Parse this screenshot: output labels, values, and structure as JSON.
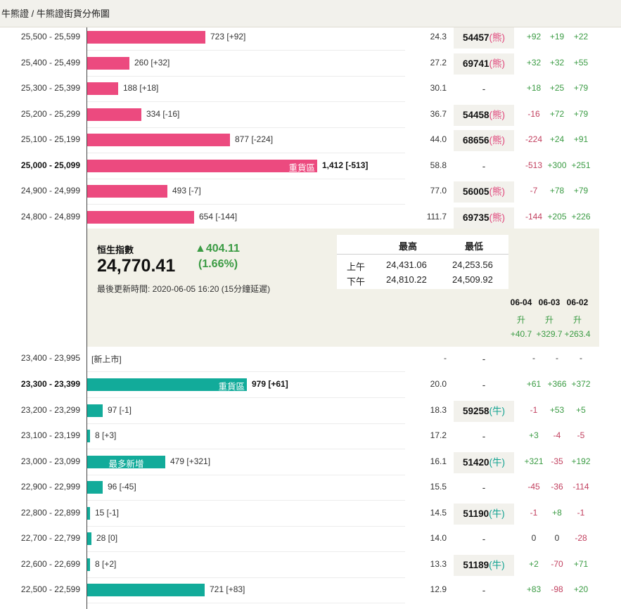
{
  "breadcrumb": "牛熊證 / 牛熊證街貨分佈圖",
  "bear_rows": [
    {
      "range": "25,500 - 25,599",
      "count": "723 [+92]",
      "level": "24.3",
      "code": "54457",
      "type": "熊",
      "c1": "+92",
      "c2": "+19",
      "c3": "+22",
      "value": 723
    },
    {
      "range": "25,400 - 25,499",
      "count": "260 [+32]",
      "level": "27.2",
      "code": "69741",
      "type": "熊",
      "c1": "+32",
      "c2": "+32",
      "c3": "+55",
      "value": 260
    },
    {
      "range": "25,300 - 25,399",
      "count": "188 [+18]",
      "level": "30.1",
      "code": "-",
      "type": "",
      "c1": "+18",
      "c2": "+25",
      "c3": "+79",
      "value": 188
    },
    {
      "range": "25,200 - 25,299",
      "count": "334 [-16]",
      "level": "36.7",
      "code": "54458",
      "type": "熊",
      "c1": "-16",
      "c2": "+72",
      "c3": "+79",
      "value": 334
    },
    {
      "range": "25,100 - 25,199",
      "count": "877 [-224]",
      "level": "44.0",
      "code": "68656",
      "type": "熊",
      "c1": "-224",
      "c2": "+24",
      "c3": "+91",
      "value": 877
    },
    {
      "range": "25,000 - 25,099",
      "count": "1,412 [-513]",
      "level": "58.8",
      "code": "-",
      "type": "",
      "c1": "-513",
      "c2": "+300",
      "c3": "+251",
      "value": 1412,
      "tag": "重貨區",
      "bold": true
    },
    {
      "range": "24,900 - 24,999",
      "count": "493 [-7]",
      "level": "77.0",
      "code": "56005",
      "type": "熊",
      "c1": "-7",
      "c2": "+78",
      "c3": "+79",
      "value": 493
    },
    {
      "range": "24,800 - 24,899",
      "count": "654 [-144]",
      "level": "111.7",
      "code": "69735",
      "type": "熊",
      "c1": "-144",
      "c2": "+205",
      "c3": "+226",
      "value": 654
    }
  ],
  "index": {
    "name": "恒生指數",
    "value": "24,770.41",
    "change": "▲404.11",
    "pct": "(1.66%)",
    "updated": "最後更新時間: 2020-06-05 16:20 (15分鐘延遲)",
    "hl_headers": [
      "最高",
      "最低"
    ],
    "hl_rows": [
      {
        "label": "上午",
        "high": "24,431.06",
        "low": "24,253.56"
      },
      {
        "label": "下午",
        "high": "24,810.22",
        "low": "24,509.92"
      }
    ],
    "days": [
      {
        "date": "06-04",
        "dir": "升",
        "val": "+40.7"
      },
      {
        "date": "06-03",
        "dir": "升",
        "val": "+329.7"
      },
      {
        "date": "06-02",
        "dir": "升",
        "val": "+263.4"
      }
    ]
  },
  "new_listing_row": {
    "range": "23,400 - 23,995",
    "label": "[新上市]",
    "level": "-",
    "code": "-",
    "c1": "-",
    "c2": "-",
    "c3": "-"
  },
  "bull_rows": [
    {
      "range": "23,300 - 23,399",
      "count": "979 [+61]",
      "level": "20.0",
      "code": "-",
      "type": "",
      "c1": "+61",
      "c2": "+366",
      "c3": "+372",
      "value": 979,
      "tag": "重貨區",
      "bold": true
    },
    {
      "range": "23,200 - 23,299",
      "count": "97 [-1]",
      "level": "18.3",
      "code": "59258",
      "type": "牛",
      "c1": "-1",
      "c2": "+53",
      "c3": "+5",
      "value": 97
    },
    {
      "range": "23,100 - 23,199",
      "count": "8 [+3]",
      "level": "17.2",
      "code": "-",
      "type": "",
      "c1": "+3",
      "c2": "-4",
      "c3": "-5",
      "value": 8
    },
    {
      "range": "23,000 - 23,099",
      "count": "479 [+321]",
      "level": "16.1",
      "code": "51420",
      "type": "牛",
      "c1": "+321",
      "c2": "-35",
      "c3": "+192",
      "value": 479,
      "tag": "最多新增",
      "tag_center": true
    },
    {
      "range": "22,900 - 22,999",
      "count": "96 [-45]",
      "level": "15.5",
      "code": "-",
      "type": "",
      "c1": "-45",
      "c2": "-36",
      "c3": "-114",
      "value": 96
    },
    {
      "range": "22,800 - 22,899",
      "count": "15 [-1]",
      "level": "14.5",
      "code": "51190",
      "type": "牛",
      "c1": "-1",
      "c2": "+8",
      "c3": "-1",
      "value": 15
    },
    {
      "range": "22,700 - 22,799",
      "count": "28 [0]",
      "level": "14.0",
      "code": "-",
      "type": "",
      "c1": "0",
      "c2": "0",
      "c3": "-28",
      "value": 28
    },
    {
      "range": "22,600 - 22,699",
      "count": "8 [+2]",
      "level": "13.3",
      "code": "51189",
      "type": "牛",
      "c1": "+2",
      "c2": "-70",
      "c3": "+71",
      "value": 8
    },
    {
      "range": "22,500 - 22,599",
      "count": "721 [+83]",
      "level": "12.9",
      "code": "-",
      "type": "",
      "c1": "+83",
      "c2": "-98",
      "c3": "+20",
      "value": 721
    }
  ]
}
